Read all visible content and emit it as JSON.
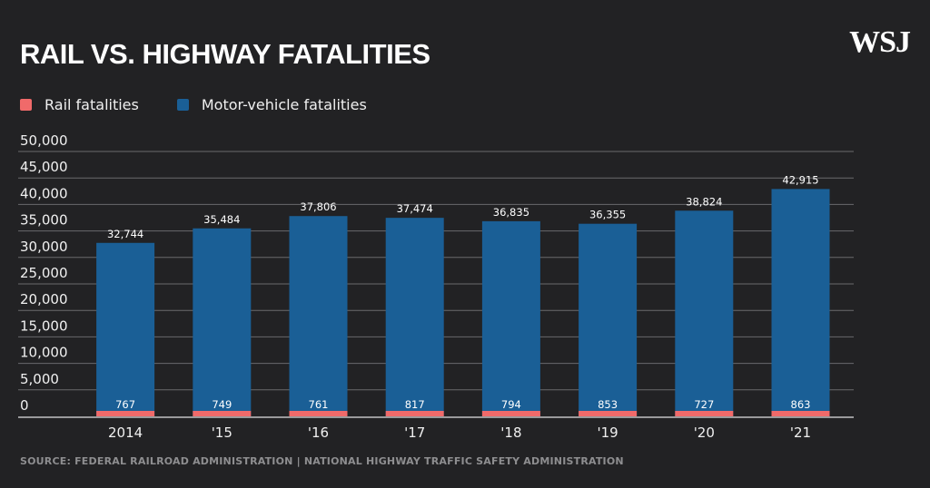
{
  "title": "RAIL VS. HIGHWAY FATALITIES",
  "logo": "WSJ",
  "source": "SOURCE: FEDERAL RAILROAD ADMINISTRATION | NATIONAL HIGHWAY TRAFFIC SAFETY ADMINISTRATION",
  "colors": {
    "rail": "#f06a6a",
    "motor": "#1a5f96",
    "background": "#222224",
    "grid": "#6a6a6c"
  },
  "chart_data": {
    "type": "bar",
    "title": "RAIL VS. HIGHWAY FATALITIES",
    "categories": [
      "2014",
      "'15",
      "'16",
      "'17",
      "'18",
      "'19",
      "'20",
      "'21"
    ],
    "series": [
      {
        "name": "Rail fatalities",
        "values": [
          767,
          749,
          761,
          817,
          794,
          853,
          727,
          863
        ]
      },
      {
        "name": "Motor-vehicle fatalities",
        "values": [
          32744,
          35484,
          37806,
          37474,
          36835,
          36355,
          38824,
          42915
        ]
      }
    ],
    "rail_labels": [
      "767",
      "749",
      "761",
      "817",
      "794",
      "853",
      "727",
      "863"
    ],
    "motor_labels": [
      "32,744",
      "35,484",
      "37,806",
      "37,474",
      "36,835",
      "36,355",
      "38,824",
      "42,915"
    ],
    "yticks": [
      "0",
      "5,000",
      "10,000",
      "15,000",
      "20,000",
      "25,000",
      "30,000",
      "35,000",
      "40,000",
      "45,000",
      "50,000"
    ],
    "ylim": [
      0,
      50000
    ],
    "legend_position": "top-left",
    "grid": true,
    "xlabel": "",
    "ylabel": ""
  }
}
